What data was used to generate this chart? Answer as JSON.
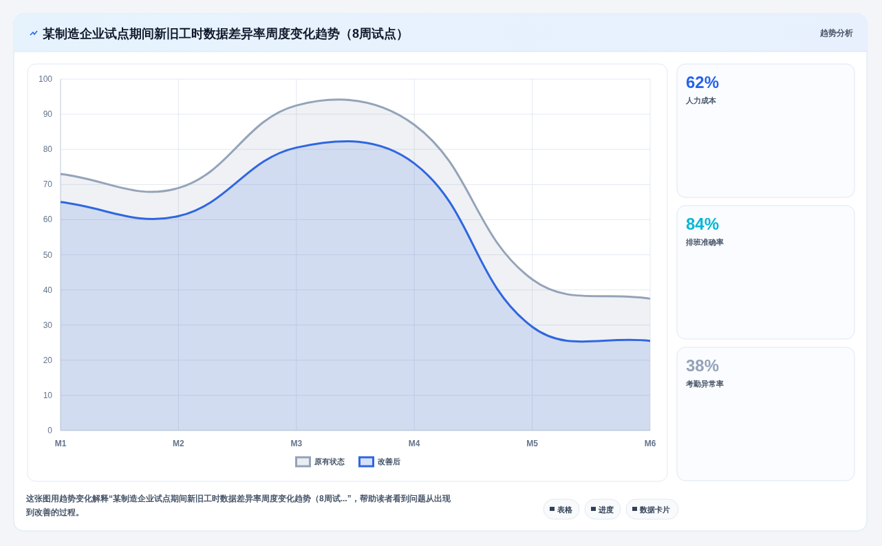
{
  "chart_data": [
    {
      "type": "area",
      "title": "某制造企业试点期间新旧工时数据差异率周度变化趋势（8周试点）",
      "categories": [
        "M1",
        "M2",
        "M3",
        "M4",
        "M5",
        "M6"
      ],
      "series": [
        {
          "name": "原有状态",
          "color": "#94a3b8",
          "values": [
            73,
            69,
            92.5,
            87,
            43,
            37.5
          ]
        },
        {
          "name": "改善后",
          "color": "#2f66e0",
          "values": [
            65,
            61,
            80.5,
            76,
            29.5,
            25.5
          ]
        }
      ],
      "ylim": [
        0,
        100
      ],
      "yticks": [
        0,
        10,
        20,
        30,
        40,
        50,
        60,
        70,
        80,
        90,
        100
      ],
      "grid": true,
      "legend": "bottom",
      "marker": "none",
      "line_style": "solid",
      "annotations": [
        "趋势分析",
        "这张图用趋势变化解释“某制造企业试点期间新旧工时数据差异率周度变化趋势（8周试...”，帮助读者看到问题从出现到改善的过程。",
        "表格",
        "进度",
        "数据卡片"
      ]
    },
    {
      "type": "other",
      "annotations": [
        "62%",
        "人力成本",
        "84%",
        "排班准确率",
        "38%",
        "考勤异常率"
      ],
      "colors": [
        "#2563eb",
        "#06b6d4",
        "#94a3b8"
      ]
    }
  ]
}
